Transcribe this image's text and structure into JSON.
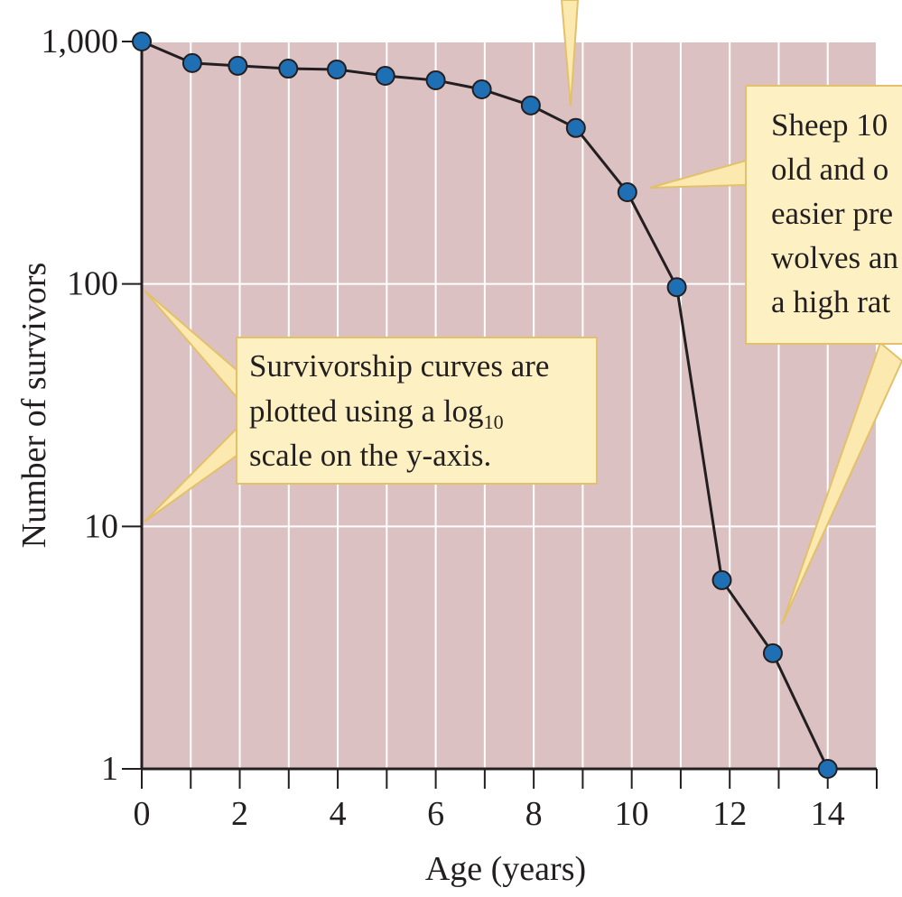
{
  "chart_data": {
    "type": "line",
    "x_label": "Age (years)",
    "y_label": "Number of survivors",
    "log_y": true,
    "grid": true,
    "x": [
      0,
      1.03,
      1.96,
      2.99,
      3.98,
      4.97,
      6,
      6.94,
      7.94,
      8.86,
      9.91,
      10.92,
      11.84,
      12.88,
      14
    ],
    "series": [
      {
        "name": "Sheep",
        "color": "#1f6fb5",
        "values": [
          1000,
          815,
          794,
          773,
          767,
          722,
          692,
          635,
          545,
          440,
          239,
          97,
          6,
          3,
          1
        ]
      }
    ],
    "xlim": [
      0,
      15
    ],
    "ylim": [
      1,
      1000
    ],
    "xticks": [
      0,
      2,
      4,
      6,
      8,
      10,
      12,
      14
    ],
    "xminor": [
      1,
      3,
      5,
      7,
      9,
      11,
      13,
      15
    ],
    "yticks": [
      1,
      10,
      100,
      {
        "value": 1000,
        "label": "1,000"
      }
    ],
    "annotations": [
      {
        "lines": [
          "Survivorship curves are",
          "plotted using a log",
          "scale on the y-axis."
        ],
        "subscript": "10"
      },
      {
        "lines": [
          "Sheep 10",
          "old and o",
          "easier pre",
          "wolves an",
          "a high rat"
        ]
      }
    ]
  }
}
